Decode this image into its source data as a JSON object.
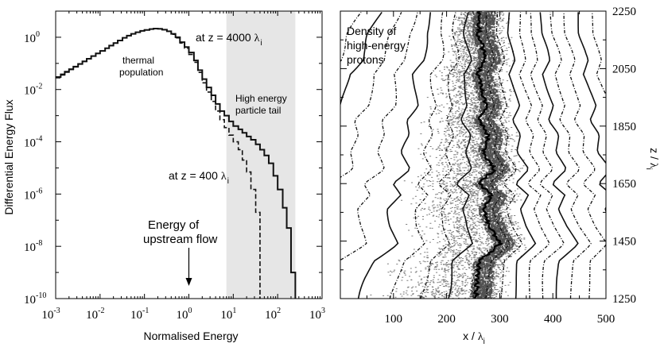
{
  "chart_data": [
    {
      "type": "line",
      "xlabel": "Normalised Energy",
      "ylabel": "Differential Energy Flux",
      "xscale": "log",
      "yscale": "log",
      "xlim": [
        0.001,
        1000
      ],
      "ylim": [
        1e-10,
        10
      ],
      "x_ticks": [
        {
          "base": "10",
          "exp": "-3"
        },
        {
          "base": "10",
          "exp": "-2"
        },
        {
          "base": "10",
          "exp": "-1"
        },
        {
          "base": "10",
          "exp": "0"
        },
        {
          "base": "10",
          "exp": "1"
        },
        {
          "base": "10",
          "exp": "2"
        },
        {
          "base": "10",
          "exp": "3"
        }
      ],
      "y_ticks": [
        {
          "base": "10",
          "exp": "0"
        },
        {
          "base": "10",
          "exp": "-2"
        },
        {
          "base": "10",
          "exp": "-4"
        },
        {
          "base": "10",
          "exp": "-6"
        },
        {
          "base": "10",
          "exp": "-8"
        },
        {
          "base": "10",
          "exp": "-10"
        }
      ],
      "shaded_region": {
        "x": [
          7,
          250
        ],
        "label_lines": [
          "High energy",
          "particle tail"
        ]
      },
      "annotations": {
        "thermal": [
          "thermal",
          "population"
        ],
        "energy_arrow": {
          "lines": [
            "Energy of",
            "upstream flow"
          ],
          "x": 1.0
        },
        "z4000": {
          "prefix": "at  z = 4000",
          "sym": "λ",
          "sub": "i"
        },
        "z400": {
          "prefix": "at  z = 400",
          "sym": "λ",
          "sub": "i"
        }
      },
      "series": [
        {
          "style": "solid",
          "x": [
            0.001,
            0.0013,
            0.0016,
            0.002,
            0.0025,
            0.0032,
            0.004,
            0.005,
            0.0063,
            0.008,
            0.01,
            0.013,
            0.016,
            0.02,
            0.025,
            0.032,
            0.04,
            0.05,
            0.063,
            0.08,
            0.1,
            0.13,
            0.16,
            0.2,
            0.25,
            0.32,
            0.4,
            0.5,
            0.63,
            0.8,
            1.0,
            1.3,
            1.6,
            2.0,
            2.5,
            3.2,
            4.0,
            5.0,
            6.3,
            8.0,
            10,
            13,
            16,
            20,
            25,
            32,
            40,
            50,
            63,
            80,
            100,
            130,
            160,
            200,
            250
          ],
          "y": [
            0.03,
            0.038,
            0.048,
            0.06,
            0.075,
            0.095,
            0.12,
            0.15,
            0.19,
            0.24,
            0.3,
            0.38,
            0.48,
            0.6,
            0.75,
            0.95,
            1.15,
            1.35,
            1.55,
            1.75,
            1.9,
            2.05,
            2.15,
            2.1,
            1.95,
            1.7,
            1.35,
            1.0,
            0.65,
            0.42,
            0.26,
            0.13,
            0.055,
            0.025,
            0.012,
            0.006,
            0.0028,
            0.0015,
            0.001,
            0.0006,
            0.0004,
            0.0003,
            0.00022,
            0.00016,
            0.00012,
            8e-05,
            5e-05,
            3e-05,
            1.5e-05,
            5e-06,
            1.5e-06,
            3e-07,
            5e-08,
            1e-09,
            3e-10
          ]
        },
        {
          "style": "dashed",
          "x": [
            0.001,
            0.0013,
            0.0016,
            0.002,
            0.0025,
            0.0032,
            0.004,
            0.005,
            0.0063,
            0.008,
            0.01,
            0.013,
            0.016,
            0.02,
            0.025,
            0.032,
            0.04,
            0.05,
            0.063,
            0.08,
            0.1,
            0.13,
            0.16,
            0.2,
            0.25,
            0.32,
            0.4,
            0.5,
            0.63,
            0.8,
            1.0,
            1.3,
            1.6,
            2.0,
            2.5,
            3.2,
            4.0,
            5.0,
            6.3,
            8.0,
            10,
            13,
            16,
            20,
            25,
            32,
            40
          ],
          "y": [
            0.028,
            0.036,
            0.046,
            0.058,
            0.073,
            0.093,
            0.118,
            0.148,
            0.19,
            0.24,
            0.3,
            0.38,
            0.48,
            0.6,
            0.75,
            0.95,
            1.15,
            1.35,
            1.55,
            1.75,
            1.9,
            2.05,
            2.15,
            2.1,
            1.95,
            1.7,
            1.3,
            0.95,
            0.6,
            0.38,
            0.22,
            0.11,
            0.045,
            0.018,
            0.008,
            0.0035,
            0.0015,
            0.0007,
            0.00035,
            0.00018,
            0.0001,
            5e-05,
            2e-05,
            7e-06,
            1.5e-06,
            2e-07,
            1e-09
          ]
        }
      ]
    },
    {
      "type": "heatmap",
      "xlabel": {
        "prefix": "x / ",
        "sym": "λ",
        "sub": "i"
      },
      "ylabel": {
        "prefix": "z / ",
        "sym": "λ",
        "sub": "i"
      },
      "xlim": [
        0,
        500
      ],
      "ylim": [
        1250,
        2250
      ],
      "x_ticks": [
        "100",
        "200",
        "300",
        "400",
        "500"
      ],
      "y_ticks": [
        "1250",
        "1450",
        "1650",
        "1850",
        "2050",
        "2250"
      ],
      "title_lines": [
        "Density of",
        "high-energy",
        "protons"
      ],
      "front_line": {
        "z": [
          1250,
          1320,
          1380,
          1440,
          1500,
          1560,
          1610,
          1650,
          1700,
          1760,
          1820,
          1870,
          1920,
          1980,
          2030,
          2080,
          2120,
          2170,
          2250
        ],
        "x": [
          255,
          258,
          262,
          300,
          282,
          270,
          285,
          262,
          290,
          270,
          278,
          262,
          275,
          265,
          258,
          272,
          268,
          260,
          262
        ]
      }
    }
  ]
}
